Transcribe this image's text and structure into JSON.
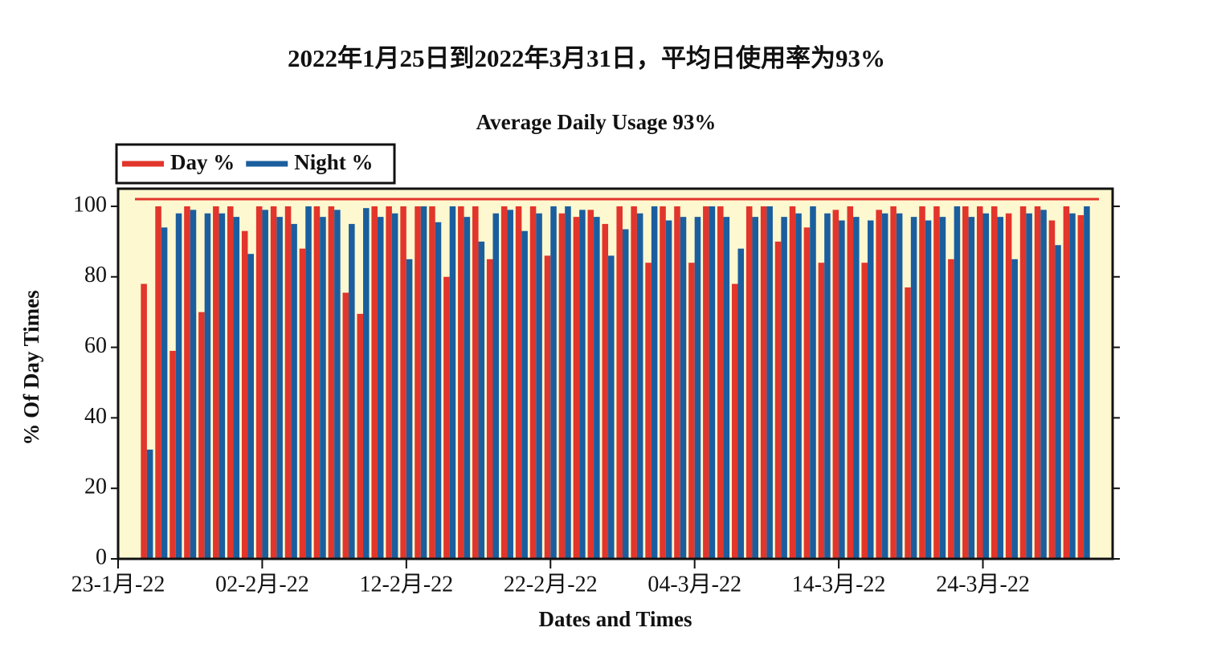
{
  "chart_data": {
    "type": "bar",
    "title": "2022年1月25日到2022年3月31日，平均日使用率为93%",
    "subtitle": "Average Daily Usage 93%",
    "x_label": "Dates and Times",
    "y_label": "% Of Day Times",
    "x": [
      "2022-01-25",
      "2022-01-26",
      "2022-01-27",
      "2022-01-28",
      "2022-01-29",
      "2022-01-30",
      "2022-01-31",
      "2022-02-01",
      "2022-02-02",
      "2022-02-03",
      "2022-02-04",
      "2022-02-05",
      "2022-02-06",
      "2022-02-07",
      "2022-02-08",
      "2022-02-09",
      "2022-02-10",
      "2022-02-11",
      "2022-02-12",
      "2022-02-13",
      "2022-02-14",
      "2022-02-15",
      "2022-02-16",
      "2022-02-17",
      "2022-02-18",
      "2022-02-19",
      "2022-02-20",
      "2022-02-21",
      "2022-02-22",
      "2022-02-23",
      "2022-02-24",
      "2022-02-25",
      "2022-02-26",
      "2022-02-27",
      "2022-02-28",
      "2022-03-01",
      "2022-03-02",
      "2022-03-03",
      "2022-03-04",
      "2022-03-05",
      "2022-03-06",
      "2022-03-07",
      "2022-03-08",
      "2022-03-09",
      "2022-03-10",
      "2022-03-11",
      "2022-03-12",
      "2022-03-13",
      "2022-03-14",
      "2022-03-15",
      "2022-03-16",
      "2022-03-17",
      "2022-03-18",
      "2022-03-19",
      "2022-03-20",
      "2022-03-21",
      "2022-03-22",
      "2022-03-23",
      "2022-03-24",
      "2022-03-25",
      "2022-03-26",
      "2022-03-27",
      "2022-03-28",
      "2022-03-29",
      "2022-03-30",
      "2022-03-31"
    ],
    "series": [
      {
        "name": "Day %",
        "color": "#e2352b",
        "values": [
          78,
          100,
          59,
          100,
          70,
          100,
          100,
          93,
          100,
          100,
          100,
          88,
          100,
          100,
          75.5,
          69.5,
          100,
          100,
          100,
          100,
          100,
          80,
          100,
          100,
          85,
          100,
          100,
          100,
          86,
          98,
          97,
          99,
          95,
          100,
          100,
          84,
          100,
          100,
          84,
          100,
          100,
          78,
          100,
          100,
          90,
          100,
          94,
          84,
          99,
          100,
          84,
          99,
          100,
          77,
          100,
          100,
          85,
          100,
          100,
          100,
          98,
          100,
          100,
          96,
          100,
          97.5
        ]
      },
      {
        "name": "Night %",
        "color": "#1b5e9e",
        "values": [
          31,
          94,
          98,
          99,
          98,
          98,
          97,
          86.5,
          99,
          97,
          95,
          100,
          97,
          99,
          95,
          99.5,
          97,
          98,
          85,
          100,
          95.5,
          100,
          97,
          90,
          98,
          99,
          93,
          98,
          100,
          100,
          99,
          97,
          86,
          93.5,
          98,
          100,
          96,
          97,
          97,
          100,
          97,
          88,
          97,
          100,
          97,
          98,
          100,
          98,
          96,
          97,
          96,
          98,
          98,
          97,
          96,
          97,
          100,
          97,
          98,
          97,
          85,
          98,
          99,
          89,
          98,
          100
        ]
      }
    ],
    "xlim": [
      "2022-01-23",
      "2022-04-02"
    ],
    "xticks": [
      {
        "value": "2022-01-23",
        "label": "23-1月-22"
      },
      {
        "value": "2022-02-02",
        "label": "02-2月-22"
      },
      {
        "value": "2022-02-12",
        "label": "12-2月-22"
      },
      {
        "value": "2022-02-22",
        "label": "22-2月-22"
      },
      {
        "value": "2022-03-04",
        "label": "04-3月-22"
      },
      {
        "value": "2022-03-14",
        "label": "14-3月-22"
      },
      {
        "value": "2022-03-24",
        "label": "24-3月-22"
      }
    ],
    "ylim": [
      0,
      105
    ],
    "yticks": [
      0,
      20,
      40,
      60,
      80,
      100
    ],
    "legend": "top-left",
    "background": "#fdf8d0"
  }
}
